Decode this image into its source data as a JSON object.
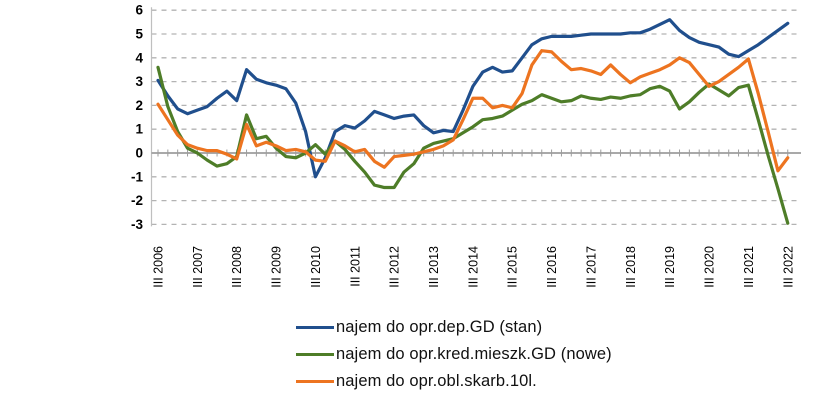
{
  "chart_data": {
    "type": "line",
    "title": "",
    "x_axis": {
      "unit": "quarter",
      "first_point": "III 2006",
      "last_point": "III 2022",
      "points_per_series": 65,
      "ticks_every_n_points": 4,
      "tick_labels": [
        "III 2006",
        "III 2007",
        "III 2008",
        "III 2009",
        "III 2010",
        "III 2011",
        "III 2012",
        "III 2013",
        "III 2014",
        "III 2015",
        "III 2016",
        "III 2017",
        "III 2018",
        "III 2019",
        "III 2020",
        "III 2021",
        "III 2022"
      ]
    },
    "y_axis": {
      "ticks": [
        6,
        5,
        4,
        3,
        2,
        1,
        0,
        -1,
        -2,
        -3
      ],
      "ylim": [
        -3,
        6
      ]
    },
    "grid": {
      "horizontal_dashed": true,
      "zero_line_solid": true,
      "grid_color": "#b3b3b3",
      "zero_line_color": "#9d9d9d",
      "axis_line_color": "#bfbfbf"
    },
    "legend_position": "bottom-center",
    "series": [
      {
        "name": "najem do opr.dep.GD (stan)",
        "color": "#204F8D",
        "values": [
          3.05,
          2.4,
          1.85,
          1.65,
          1.8,
          1.95,
          2.3,
          2.6,
          2.2,
          3.5,
          3.1,
          2.95,
          2.85,
          2.7,
          2.1,
          0.9,
          -1.0,
          -0.2,
          0.9,
          1.15,
          1.05,
          1.35,
          1.75,
          1.6,
          1.45,
          1.55,
          1.6,
          1.15,
          0.85,
          0.95,
          0.9,
          1.8,
          2.8,
          3.4,
          3.6,
          3.4,
          3.45,
          4.0,
          4.55,
          4.8,
          4.9,
          4.9,
          4.9,
          4.95,
          5.0,
          5.0,
          5.0,
          5.0,
          5.05,
          5.05,
          5.2,
          5.4,
          5.6,
          5.15,
          4.85,
          4.65,
          4.55,
          4.45,
          4.15,
          4.05,
          4.3,
          4.55,
          4.85,
          5.15,
          5.45
        ]
      },
      {
        "name": "najem do opr.kred.mieszk.GD (nowe)",
        "color": "#4E7D28",
        "values": [
          3.6,
          1.95,
          0.9,
          0.2,
          0.0,
          -0.3,
          -0.55,
          -0.45,
          -0.15,
          1.6,
          0.6,
          0.7,
          0.2,
          -0.15,
          -0.2,
          0.0,
          0.35,
          -0.05,
          0.5,
          0.15,
          -0.35,
          -0.8,
          -1.35,
          -1.45,
          -1.45,
          -0.8,
          -0.45,
          0.2,
          0.4,
          0.5,
          0.6,
          0.85,
          1.1,
          1.4,
          1.45,
          1.55,
          1.8,
          2.05,
          2.2,
          2.45,
          2.3,
          2.15,
          2.2,
          2.4,
          2.3,
          2.25,
          2.35,
          2.3,
          2.4,
          2.45,
          2.7,
          2.8,
          2.6,
          1.85,
          2.15,
          2.55,
          2.9,
          2.65,
          2.4,
          2.75,
          2.85,
          1.4,
          -0.1,
          -1.5,
          -2.95
        ]
      },
      {
        "name": "najem do opr.obl.skarb.10l.",
        "color": "#ED7420",
        "values": [
          2.05,
          1.4,
          0.75,
          0.35,
          0.2,
          0.1,
          0.1,
          -0.05,
          -0.25,
          1.2,
          0.3,
          0.45,
          0.3,
          0.1,
          0.15,
          0.05,
          -0.3,
          -0.35,
          0.5,
          0.3,
          0.05,
          0.15,
          -0.35,
          -0.6,
          -0.15,
          -0.1,
          -0.05,
          0.05,
          0.15,
          0.3,
          0.55,
          1.4,
          2.3,
          2.3,
          1.9,
          2.0,
          1.9,
          2.5,
          3.7,
          4.3,
          4.25,
          3.85,
          3.5,
          3.55,
          3.45,
          3.3,
          3.7,
          3.3,
          2.95,
          3.2,
          3.35,
          3.5,
          3.7,
          4.0,
          3.8,
          3.3,
          2.8,
          3.0,
          3.3,
          3.6,
          3.95,
          2.5,
          0.9,
          -0.75,
          -0.2
        ]
      }
    ]
  }
}
